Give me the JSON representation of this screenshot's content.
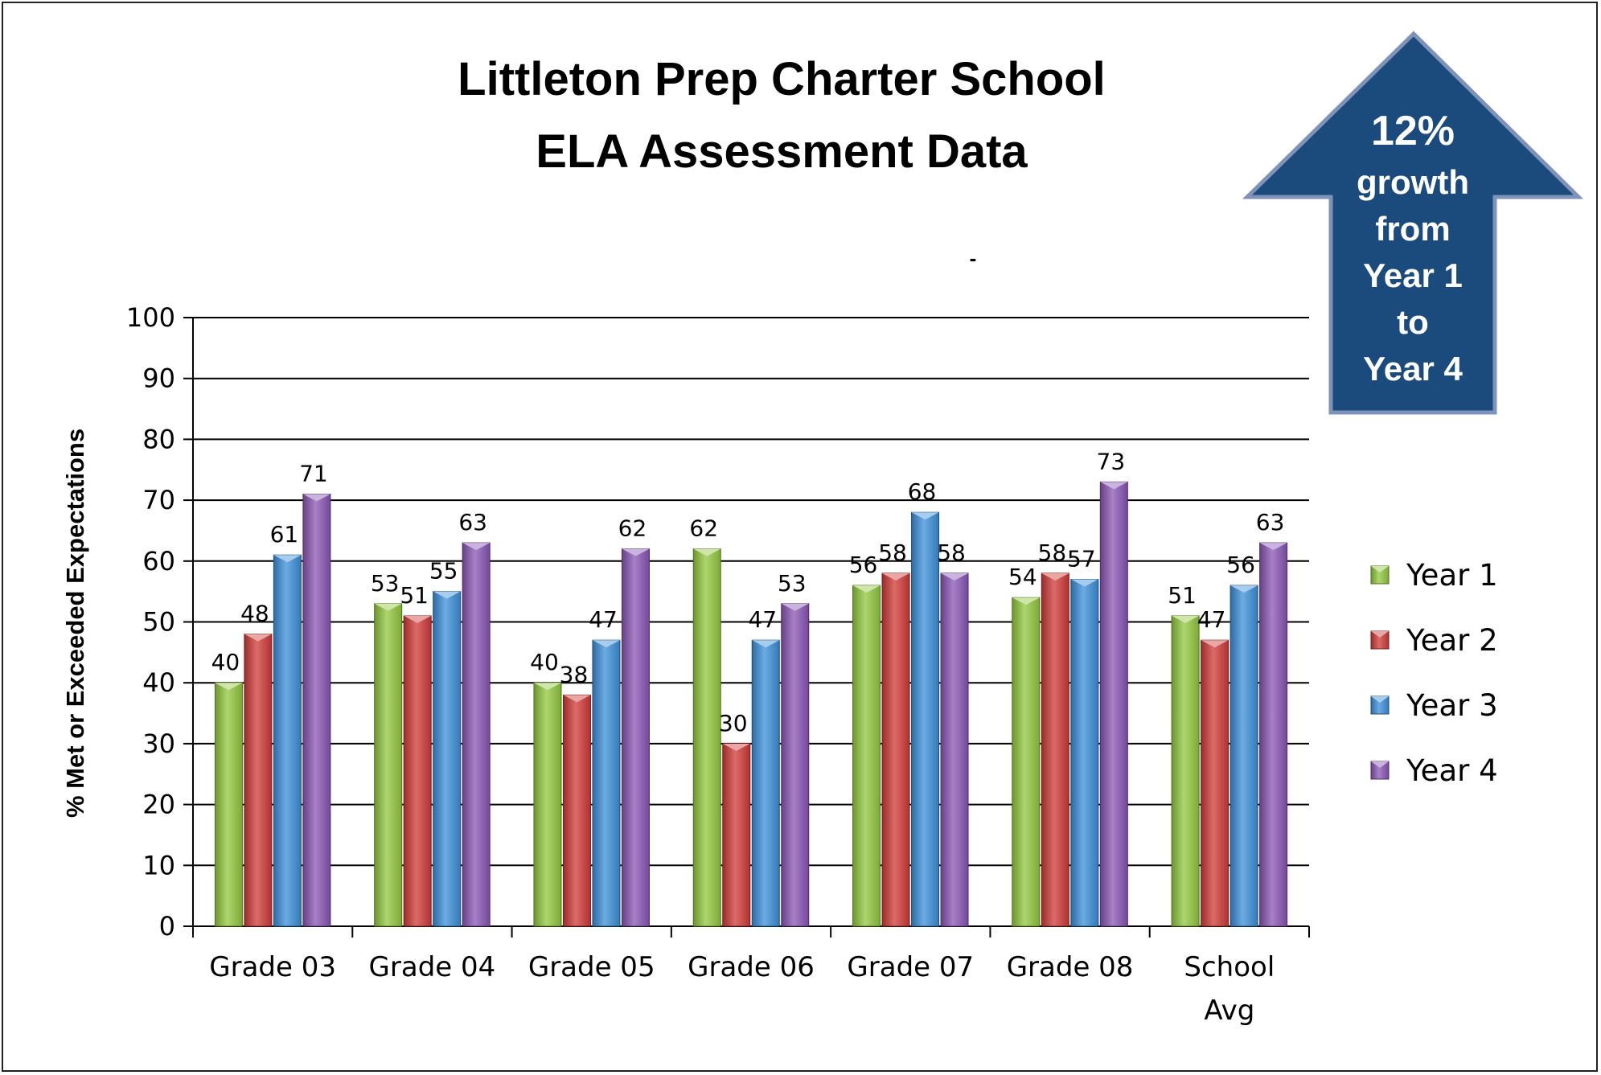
{
  "chart_data": {
    "type": "bar",
    "title_line1": "Littleton Prep Charter School",
    "title_line2": "ELA Assessment Data",
    "stray_mark": "-",
    "ylabel": "% Met or Exceeded Expectations",
    "ylim": [
      0,
      100
    ],
    "yticks": [
      0,
      10,
      20,
      30,
      40,
      50,
      60,
      70,
      80,
      90,
      100
    ],
    "grid": true,
    "legend_position": "right",
    "categories": [
      [
        "Grade 03"
      ],
      [
        "Grade 04"
      ],
      [
        "Grade 05"
      ],
      [
        "Grade 06"
      ],
      [
        "Grade 07"
      ],
      [
        "Grade 08"
      ],
      [
        "School",
        "Avg"
      ]
    ],
    "series": [
      {
        "name": "Year 1",
        "color": "#92c83e",
        "values": [
          40,
          53,
          40,
          62,
          56,
          54,
          51
        ]
      },
      {
        "name": "Year 2",
        "color": "#d03a36",
        "values": [
          48,
          51,
          38,
          30,
          58,
          58,
          47
        ]
      },
      {
        "name": "Year 3",
        "color": "#3b8fd9",
        "values": [
          61,
          55,
          47,
          47,
          68,
          57,
          56
        ]
      },
      {
        "name": "Year 4",
        "color": "#8a55b5",
        "values": [
          71,
          63,
          62,
          53,
          58,
          73,
          63
        ]
      }
    ]
  },
  "callout": {
    "color": "#1b4a7c",
    "lines": [
      "12%",
      "growth",
      "from",
      "Year 1",
      "to",
      "Year 4"
    ]
  }
}
